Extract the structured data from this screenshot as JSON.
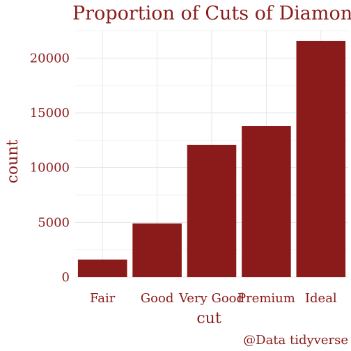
{
  "chart_data": {
    "type": "bar",
    "title": "Proportion of Cuts of Diamonds",
    "xlabel": "cut",
    "ylabel": "count",
    "categories": [
      "Fair",
      "Good",
      "Very Good",
      "Premium",
      "Ideal"
    ],
    "values": [
      1610,
      4906,
      12082,
      13791,
      21551
    ],
    "ylim": [
      0,
      22500
    ],
    "yticks": [
      0,
      5000,
      10000,
      15000,
      20000
    ],
    "ytick_labels": [
      "0",
      "5000",
      "10000",
      "15000",
      "20000"
    ],
    "grid": true,
    "legend": "none",
    "bar_color": "#8b1a1a",
    "caption": "@Data tidyverse"
  }
}
